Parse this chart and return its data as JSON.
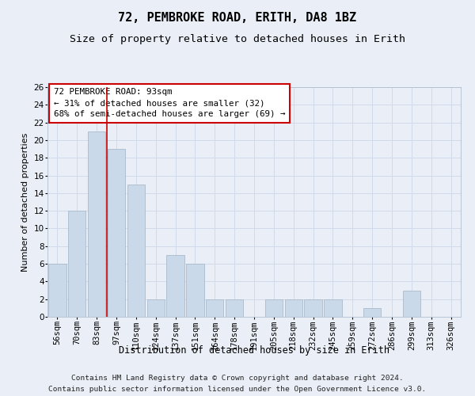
{
  "title": "72, PEMBROKE ROAD, ERITH, DA8 1BZ",
  "subtitle": "Size of property relative to detached houses in Erith",
  "xlabel": "Distribution of detached houses by size in Erith",
  "ylabel": "Number of detached properties",
  "categories": [
    "56sqm",
    "70sqm",
    "83sqm",
    "97sqm",
    "110sqm",
    "124sqm",
    "137sqm",
    "151sqm",
    "164sqm",
    "178sqm",
    "191sqm",
    "205sqm",
    "218sqm",
    "232sqm",
    "245sqm",
    "259sqm",
    "272sqm",
    "286sqm",
    "299sqm",
    "313sqm",
    "326sqm"
  ],
  "values": [
    6,
    12,
    21,
    19,
    15,
    2,
    7,
    6,
    2,
    2,
    0,
    2,
    2,
    2,
    2,
    0,
    1,
    0,
    3,
    0,
    0
  ],
  "bar_color": "#c9d9ea",
  "bar_edge_color": "#aabbcc",
  "grid_color": "#d0dae8",
  "background_color": "#eaeff7",
  "vline_color": "#cc0000",
  "vline_pos": 2.5,
  "annotation_box_color": "#cc0000",
  "annotation_line1": "72 PEMBROKE ROAD: 93sqm",
  "annotation_line2": "← 31% of detached houses are smaller (32)",
  "annotation_line3": "68% of semi-detached houses are larger (69) →",
  "footer_line1": "Contains HM Land Registry data © Crown copyright and database right 2024.",
  "footer_line2": "Contains public sector information licensed under the Open Government Licence v3.0.",
  "ylim": [
    0,
    26
  ],
  "yticks": [
    0,
    2,
    4,
    6,
    8,
    10,
    12,
    14,
    16,
    18,
    20,
    22,
    24,
    26
  ],
  "title_fontsize": 11,
  "subtitle_fontsize": 9.5,
  "ylabel_fontsize": 8,
  "xlabel_fontsize": 8.5,
  "tick_fontsize": 7.5,
  "annotation_fontsize": 7.8,
  "footer_fontsize": 6.8
}
